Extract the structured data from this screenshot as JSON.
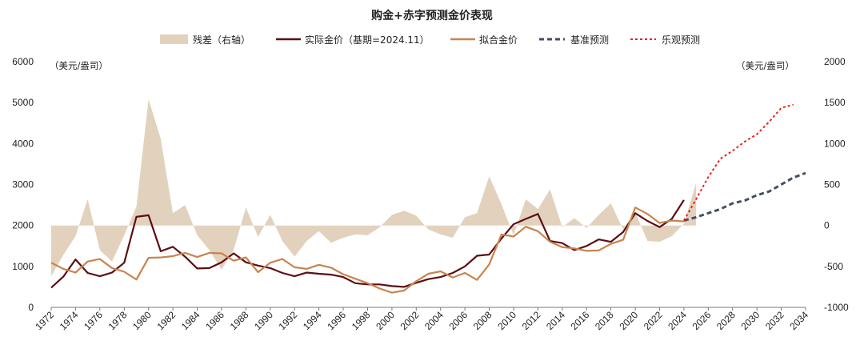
{
  "chart_data": {
    "type": "line",
    "title": "购金+赤字预测金价表现",
    "left_axis_unit": "（美元/盎司）",
    "right_axis_unit": "（美元/盎司）",
    "left_ylim": [
      0,
      6000
    ],
    "left_yticks": [
      "0",
      "1000",
      "2000",
      "3000",
      "4000",
      "5000",
      "6000"
    ],
    "right_ylim": [
      -1000,
      2000
    ],
    "right_yticks": [
      "-1000",
      "-500",
      "0",
      "500",
      "1000",
      "1500",
      "2000"
    ],
    "x_range": [
      1972,
      2034
    ],
    "x_ticks": [
      "1972",
      "1974",
      "1976",
      "1978",
      "1980",
      "1982",
      "1984",
      "1986",
      "1988",
      "1990",
      "1992",
      "1994",
      "1996",
      "1998",
      "2000",
      "2002",
      "2004",
      "2006",
      "2008",
      "2010",
      "2012",
      "2014",
      "2016",
      "2018",
      "2020",
      "2022",
      "2024",
      "2026",
      "2028",
      "2030",
      "2032",
      "2034"
    ],
    "legend": [
      "残差（右轴）",
      "实际金价（基期=2024.11）",
      "拟合金价",
      "基准预测",
      "乐观预测"
    ],
    "series": [
      {
        "name": "残差（右轴）",
        "axis": "right",
        "style": "area",
        "color": "#e2d2bd",
        "points": [
          [
            1972,
            -620
          ],
          [
            1973,
            -360
          ],
          [
            1974,
            -130
          ],
          [
            1975,
            320
          ],
          [
            1976,
            -300
          ],
          [
            1977,
            -440
          ],
          [
            1978,
            -120
          ],
          [
            1979,
            230
          ],
          [
            1980,
            1540
          ],
          [
            1981,
            1060
          ],
          [
            1982,
            150
          ],
          [
            1983,
            250
          ],
          [
            1984,
            -120
          ],
          [
            1985,
            -300
          ],
          [
            1986,
            -540
          ],
          [
            1987,
            -300
          ],
          [
            1988,
            220
          ],
          [
            1989,
            -140
          ],
          [
            1990,
            130
          ],
          [
            1991,
            -190
          ],
          [
            1992,
            -380
          ],
          [
            1993,
            -190
          ],
          [
            1994,
            -70
          ],
          [
            1995,
            -210
          ],
          [
            1996,
            -150
          ],
          [
            1997,
            -110
          ],
          [
            1998,
            -120
          ],
          [
            1999,
            -20
          ],
          [
            2000,
            130
          ],
          [
            2001,
            180
          ],
          [
            2002,
            120
          ],
          [
            2003,
            -50
          ],
          [
            2004,
            -110
          ],
          [
            2005,
            -150
          ],
          [
            2006,
            100
          ],
          [
            2007,
            150
          ],
          [
            2008,
            600
          ],
          [
            2009,
            260
          ],
          [
            2010,
            -120
          ],
          [
            2011,
            320
          ],
          [
            2012,
            200
          ],
          [
            2013,
            440
          ],
          [
            2014,
            -20
          ],
          [
            2015,
            90
          ],
          [
            2016,
            -30
          ],
          [
            2017,
            130
          ],
          [
            2018,
            270
          ],
          [
            2019,
            -50
          ],
          [
            2020,
            160
          ],
          [
            2021,
            -190
          ],
          [
            2022,
            -200
          ],
          [
            2023,
            -130
          ],
          [
            2024,
            20
          ],
          [
            2025,
            520
          ]
        ]
      },
      {
        "name": "实际金价（基期=2024.11）",
        "axis": "left",
        "style": "solid",
        "color": "#5b0f14",
        "points": [
          [
            1972,
            480
          ],
          [
            1973,
            750
          ],
          [
            1974,
            1170
          ],
          [
            1975,
            840
          ],
          [
            1976,
            760
          ],
          [
            1977,
            850
          ],
          [
            1978,
            1090
          ],
          [
            1979,
            2210
          ],
          [
            1980,
            2250
          ],
          [
            1981,
            1370
          ],
          [
            1982,
            1480
          ],
          [
            1983,
            1240
          ],
          [
            1984,
            950
          ],
          [
            1985,
            960
          ],
          [
            1986,
            1100
          ],
          [
            1987,
            1320
          ],
          [
            1988,
            1100
          ],
          [
            1989,
            1020
          ],
          [
            1990,
            960
          ],
          [
            1991,
            840
          ],
          [
            1992,
            760
          ],
          [
            1993,
            850
          ],
          [
            1994,
            820
          ],
          [
            1995,
            800
          ],
          [
            1996,
            740
          ],
          [
            1997,
            590
          ],
          [
            1998,
            560
          ],
          [
            1999,
            560
          ],
          [
            2000,
            520
          ],
          [
            2001,
            500
          ],
          [
            2002,
            600
          ],
          [
            2003,
            690
          ],
          [
            2004,
            740
          ],
          [
            2005,
            840
          ],
          [
            2006,
            1000
          ],
          [
            2007,
            1260
          ],
          [
            2008,
            1290
          ],
          [
            2009,
            1680
          ],
          [
            2010,
            2030
          ],
          [
            2011,
            2160
          ],
          [
            2012,
            2280
          ],
          [
            2013,
            1620
          ],
          [
            2014,
            1570
          ],
          [
            2015,
            1400
          ],
          [
            2016,
            1500
          ],
          [
            2017,
            1660
          ],
          [
            2018,
            1600
          ],
          [
            2019,
            1840
          ],
          [
            2020,
            2300
          ],
          [
            2021,
            2110
          ],
          [
            2022,
            1960
          ],
          [
            2023,
            2160
          ],
          [
            2024,
            2620
          ]
        ]
      },
      {
        "name": "拟合金价",
        "axis": "left",
        "style": "solid",
        "color": "#c8844f",
        "points": [
          [
            1972,
            1090
          ],
          [
            1973,
            940
          ],
          [
            1974,
            850
          ],
          [
            1975,
            1120
          ],
          [
            1976,
            1180
          ],
          [
            1977,
            960
          ],
          [
            1978,
            870
          ],
          [
            1979,
            680
          ],
          [
            1980,
            1210
          ],
          [
            1981,
            1220
          ],
          [
            1982,
            1250
          ],
          [
            1983,
            1330
          ],
          [
            1984,
            1230
          ],
          [
            1985,
            1330
          ],
          [
            1986,
            1320
          ],
          [
            1987,
            1140
          ],
          [
            1988,
            1220
          ],
          [
            1989,
            860
          ],
          [
            1990,
            1090
          ],
          [
            1991,
            1180
          ],
          [
            1992,
            980
          ],
          [
            1993,
            940
          ],
          [
            1994,
            1040
          ],
          [
            1995,
            970
          ],
          [
            1996,
            810
          ],
          [
            1997,
            700
          ],
          [
            1998,
            590
          ],
          [
            1999,
            460
          ],
          [
            2000,
            360
          ],
          [
            2001,
            410
          ],
          [
            2002,
            640
          ],
          [
            2003,
            820
          ],
          [
            2004,
            880
          ],
          [
            2005,
            730
          ],
          [
            2006,
            840
          ],
          [
            2007,
            670
          ],
          [
            2008,
            1050
          ],
          [
            2009,
            1780
          ],
          [
            2010,
            1730
          ],
          [
            2011,
            1970
          ],
          [
            2012,
            1860
          ],
          [
            2013,
            1600
          ],
          [
            2014,
            1470
          ],
          [
            2015,
            1440
          ],
          [
            2016,
            1380
          ],
          [
            2017,
            1390
          ],
          [
            2018,
            1550
          ],
          [
            2019,
            1650
          ],
          [
            2020,
            2440
          ],
          [
            2021,
            2280
          ],
          [
            2022,
            2060
          ],
          [
            2023,
            2120
          ],
          [
            2024,
            2100
          ]
        ]
      },
      {
        "name": "基准预测",
        "axis": "left",
        "style": "dashed",
        "color": "#444e63",
        "points": [
          [
            2024,
            2120
          ],
          [
            2025,
            2200
          ],
          [
            2026,
            2300
          ],
          [
            2027,
            2400
          ],
          [
            2028,
            2540
          ],
          [
            2029,
            2610
          ],
          [
            2030,
            2740
          ],
          [
            2031,
            2830
          ],
          [
            2032,
            3000
          ],
          [
            2033,
            3170
          ],
          [
            2034,
            3280
          ]
        ]
      },
      {
        "name": "乐观预测",
        "axis": "left",
        "style": "dotted",
        "color": "#e8221c",
        "points": [
          [
            2024,
            2120
          ],
          [
            2025,
            2640
          ],
          [
            2026,
            3180
          ],
          [
            2027,
            3630
          ],
          [
            2028,
            3820
          ],
          [
            2029,
            4050
          ],
          [
            2030,
            4230
          ],
          [
            2031,
            4530
          ],
          [
            2032,
            4870
          ],
          [
            2033,
            4950
          ]
        ]
      }
    ]
  }
}
